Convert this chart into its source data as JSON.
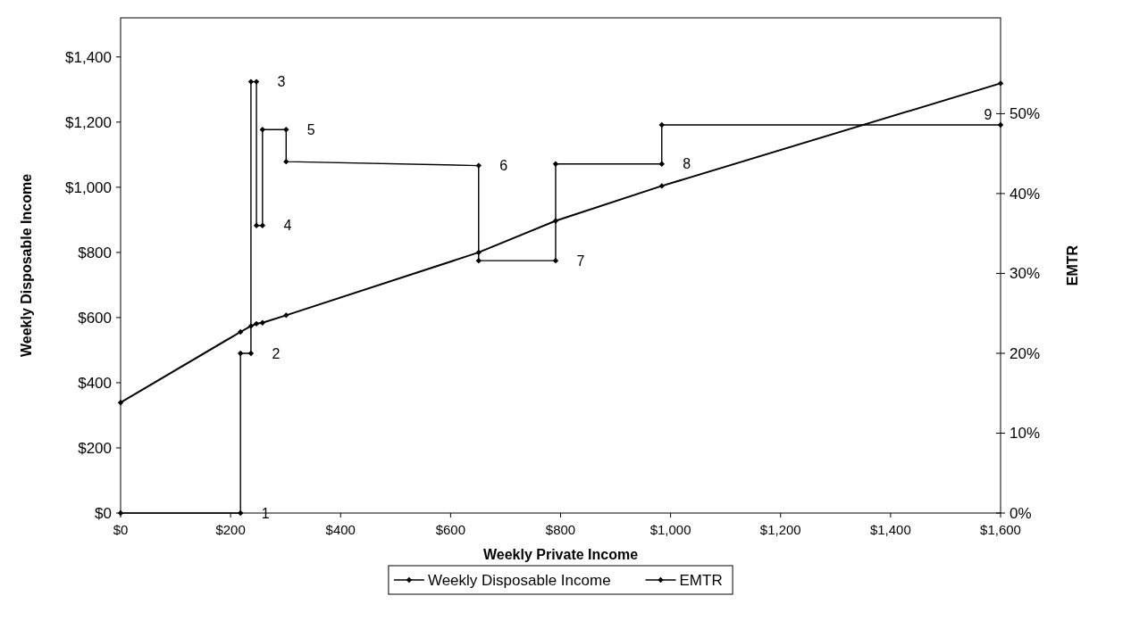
{
  "chart_data": {
    "type": "line",
    "xlabel": "Weekly Private Income",
    "ylabel": "Weekly Disposable Income",
    "y2label": "EMTR",
    "xlim": [
      0,
      1600
    ],
    "xticks": [
      {
        "value": 0,
        "label": "$0"
      },
      {
        "value": 200,
        "label": "$200"
      },
      {
        "value": 400,
        "label": "$400"
      },
      {
        "value": 600,
        "label": "$600"
      },
      {
        "value": 800,
        "label": "$800"
      },
      {
        "value": 1000,
        "label": "$1,000"
      },
      {
        "value": 1200,
        "label": "$1,200"
      },
      {
        "value": 1400,
        "label": "$1,400"
      },
      {
        "value": 1600,
        "label": "$1,600"
      }
    ],
    "ylim": [
      0,
      1520
    ],
    "yticks": [
      {
        "value": 0,
        "label": "$0"
      },
      {
        "value": 200,
        "label": "$200"
      },
      {
        "value": 400,
        "label": "$400"
      },
      {
        "value": 600,
        "label": "$600"
      },
      {
        "value": 800,
        "label": "$800"
      },
      {
        "value": 1000,
        "label": "$1,000"
      },
      {
        "value": 1200,
        "label": "$1,200"
      },
      {
        "value": 1400,
        "label": "$1,400"
      }
    ],
    "y2lim": [
      0,
      62
    ],
    "y2ticks": [
      {
        "value": 0,
        "label": "0%"
      },
      {
        "value": 10,
        "label": "10%"
      },
      {
        "value": 20,
        "label": "20%"
      },
      {
        "value": 30,
        "label": "30%"
      },
      {
        "value": 40,
        "label": "40%"
      },
      {
        "value": 50,
        "label": "50%"
      }
    ],
    "grid": false,
    "legend": "bottom",
    "marker": "diamond",
    "line_style": "solid",
    "series": [
      {
        "name": "Weekly Disposable Income",
        "color": "#000000",
        "x": [
          0,
          218,
          237,
          247,
          258,
          301,
          651,
          791,
          984,
          1600
        ],
        "values": [
          339,
          556,
          574,
          581,
          584,
          607,
          800,
          897,
          1004,
          1319
        ]
      },
      {
        "name": "EMTR",
        "color": "#000000",
        "axis": "y2",
        "x": [
          0,
          218,
          218,
          237,
          237,
          247,
          247,
          258,
          258,
          301,
          301,
          651,
          651,
          791,
          791,
          984,
          984,
          1600
        ],
        "values": [
          0,
          0,
          20,
          20,
          54,
          54,
          36,
          36,
          48,
          48,
          44,
          43.5,
          31.6,
          31.6,
          43.7,
          43.7,
          48.6,
          48.6
        ]
      }
    ],
    "annotations": [
      "1",
      "2",
      "3",
      "4",
      "5",
      "6",
      "7",
      "8",
      "9"
    ]
  }
}
